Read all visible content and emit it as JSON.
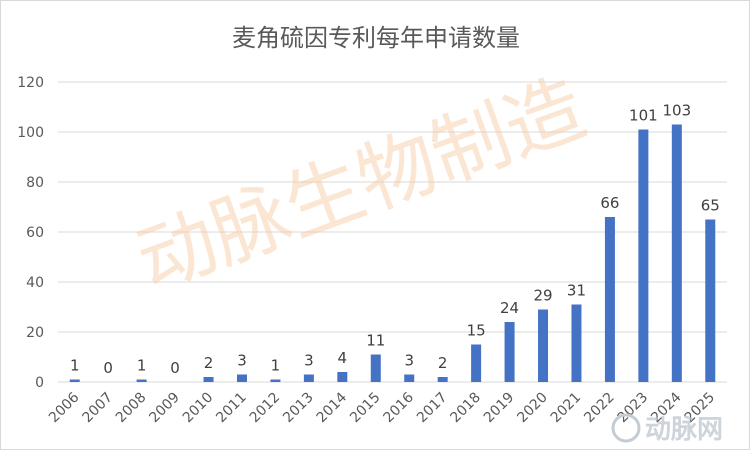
{
  "chart_data": {
    "type": "bar",
    "title": "麦角硫因专利每年申请数量",
    "xlabel": "",
    "ylabel": "",
    "categories": [
      "2006",
      "2007",
      "2008",
      "2009",
      "2010",
      "2011",
      "2012",
      "2013",
      "2014",
      "2015",
      "2016",
      "2017",
      "2018",
      "2019",
      "2020",
      "2021",
      "2022",
      "2023",
      "2024",
      "2025"
    ],
    "series": [
      {
        "values": [
          1,
          0,
          1,
          0,
          2,
          3,
          1,
          3,
          4,
          11,
          3,
          2,
          15,
          24,
          29,
          31,
          66,
          101,
          103,
          65
        ]
      }
    ],
    "ylim": [
      0,
      120
    ],
    "yticks": [
      0,
      20,
      40,
      60,
      80,
      100,
      120
    ],
    "grid": true,
    "legend": "none",
    "data_labels": true,
    "bar_color": "#4472c4",
    "grid_color": "#d9d9d9"
  },
  "watermark": {
    "text": "动脉生物制造"
  },
  "logo": {
    "text": "动脉网"
  }
}
